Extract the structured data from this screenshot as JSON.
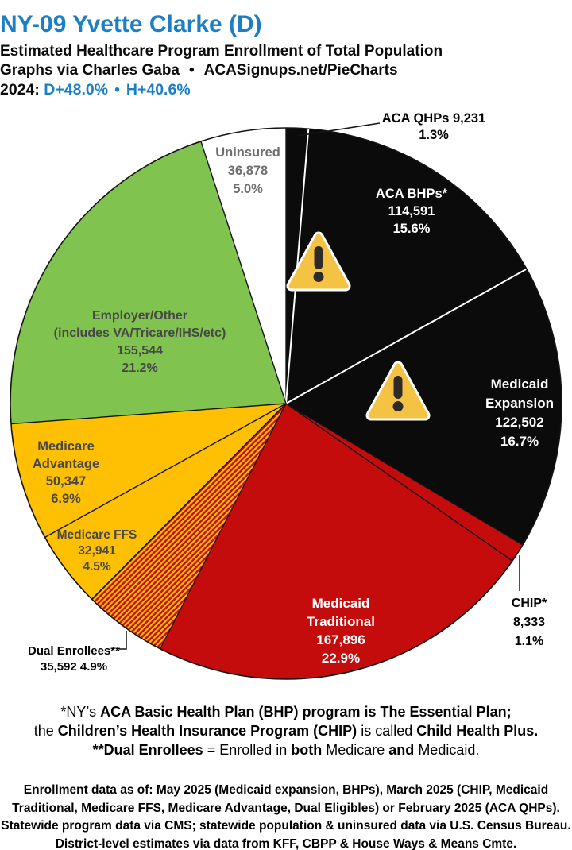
{
  "header": {
    "title": "NY-09 Yvette Clarke (D)",
    "subtitle": "Estimated Healthcare Program Enrollment of Total Population",
    "credit_left": "Graphs via Charles Gaba",
    "credit_sep": "•",
    "credit_right": "ACASignups.net/PieCharts",
    "year_label": "2024:",
    "lean_d": "D+48.0%",
    "lean_sep": "•",
    "lean_h": "H+40.6%"
  },
  "colors": {
    "title_blue": "#1C7FC6",
    "black_slice": "#0B0B0B",
    "red_slice": "#C40C0C",
    "gold_slice": "#FFC003",
    "green_slice": "#80C34F",
    "white_slice": "#FFFFFF",
    "dark_label": "#474747",
    "uninsured_label": "#6E6E6E",
    "warning_fill": "#F5C344",
    "warning_glyph": "#2D2A27"
  },
  "chart_data": {
    "type": "pie",
    "title": "Estimated Healthcare Program Enrollment of Total Population",
    "direction": "clockwise",
    "start_angle_deg": 0,
    "legend": "none",
    "slices": [
      {
        "id": "aca_qhps",
        "label": "ACA QHPs",
        "value": 9231,
        "value_text": "9,231",
        "pct": 1.3,
        "pct_text": "1.3%",
        "color": "#0B0B0B",
        "text_color": "#000000",
        "label_placement": "outside",
        "label_lines": [
          "ACA QHPs 9,231",
          "1.3%"
        ]
      },
      {
        "id": "aca_bhps",
        "label": "ACA BHPs*",
        "value": 114591,
        "value_text": "114,591",
        "pct": 15.6,
        "pct_text": "15.6%",
        "color": "#0B0B0B",
        "text_color": "#FFFFFF",
        "label_placement": "inside",
        "label_lines": [
          "ACA BHPs*",
          "114,591",
          "15.6%"
        ]
      },
      {
        "id": "medicaid_expansion",
        "label": "Medicaid Expansion",
        "value": 122502,
        "value_text": "122,502",
        "pct": 16.7,
        "pct_text": "16.7%",
        "color": "#0B0B0B",
        "text_color": "#FFFFFF",
        "label_placement": "inside",
        "label_lines": [
          "Medicaid",
          "Expansion",
          "122,502",
          "16.7%"
        ]
      },
      {
        "id": "chip",
        "label": "CHIP*",
        "value": 8333,
        "value_text": "8,333",
        "pct": 1.1,
        "pct_text": "1.1%",
        "color": "#C40C0C",
        "text_color": "#000000",
        "label_placement": "outside",
        "label_lines": [
          "CHIP*",
          "8,333",
          "1.1%"
        ]
      },
      {
        "id": "medicaid_traditional",
        "label": "Medicaid Traditional",
        "value": 167896,
        "value_text": "167,896",
        "pct": 22.9,
        "pct_text": "22.9%",
        "color": "#C40C0C",
        "text_color": "#FFFFFF",
        "label_placement": "inside",
        "label_lines": [
          "Medicaid",
          "Traditional",
          "167,896",
          "22.9%"
        ]
      },
      {
        "id": "dual_enrollees",
        "label": "Dual Enrollees**",
        "value": 35592,
        "value_text": "35,592",
        "pct": 4.9,
        "pct_text": "4.9%",
        "color": "striped",
        "stripe_colors": [
          "#C40C0C",
          "#FFC003"
        ],
        "text_color": "#000000",
        "label_placement": "outside",
        "label_lines": [
          "Dual Enrollees**",
          "35,592 4.9%"
        ]
      },
      {
        "id": "medicare_ffs",
        "label": "Medicare FFS",
        "value": 32941,
        "value_text": "32,941",
        "pct": 4.5,
        "pct_text": "4.5%",
        "color": "#FFC003",
        "text_color": "#474747",
        "label_placement": "inside",
        "label_lines": [
          "Medicare FFS",
          "32,941",
          "4.5%"
        ]
      },
      {
        "id": "medicare_advantage",
        "label": "Medicare Advantage",
        "value": 50347,
        "value_text": "50,347",
        "pct": 6.9,
        "pct_text": "6.9%",
        "color": "#FFC003",
        "text_color": "#474747",
        "label_placement": "inside",
        "label_lines": [
          "Medicare",
          "Advantage",
          "50,347",
          "6.9%"
        ]
      },
      {
        "id": "employer_other",
        "label": "Employer/Other (includes VA/Tricare/IHS/etc)",
        "value": 155544,
        "value_text": "155,544",
        "pct": 21.2,
        "pct_text": "21.2%",
        "color": "#80C34F",
        "text_color": "#474747",
        "label_placement": "inside",
        "label_lines": [
          "Employer/Other",
          "(includes VA/Tricare/IHS/etc)",
          "155,544",
          "21.2%"
        ]
      },
      {
        "id": "uninsured",
        "label": "Uninsured",
        "value": 36878,
        "value_text": "36,878",
        "pct": 5.0,
        "pct_text": "5.0%",
        "color": "#FFFFFF",
        "text_color": "#6E6E6E",
        "label_placement": "inside",
        "label_lines": [
          "Uninsured",
          "36,878",
          "5.0%"
        ]
      }
    ],
    "annotations": [
      {
        "icon": "warning-icon",
        "slice": "aca_bhps"
      },
      {
        "icon": "warning-icon",
        "slice": "medicaid_expansion"
      }
    ]
  },
  "footnotes": {
    "lines": [
      [
        {
          "t": "*NY’s ",
          "b": false
        },
        {
          "t": "ACA Basic Health Plan (BHP) program is The Essential Plan;",
          "b": true
        }
      ],
      [
        {
          "t": "the ",
          "b": false
        },
        {
          "t": "Children’s Health Insurance Program (CHIP)",
          "b": true
        },
        {
          "t": " is called ",
          "b": false
        },
        {
          "t": "Child Health Plus.",
          "b": true
        }
      ],
      [
        {
          "t": "**Dual Enrollees",
          "b": true
        },
        {
          "t": " = Enrolled in ",
          "b": false
        },
        {
          "t": "both",
          "b": true
        },
        {
          "t": " Medicare ",
          "b": false
        },
        {
          "t": "and",
          "b": true
        },
        {
          "t": " Medicaid.",
          "b": false
        }
      ]
    ]
  },
  "source": {
    "lines": [
      "Enrollment data as of: May 2025 (Medicaid expansion, BHPs), March 2025 (CHIP, Medicaid",
      "Traditional, Medicare FFS, Medicare Advantage, Dual Eligibles) or February 2025 (ACA QHPs).",
      "Statewide program data via CMS; statewide population & uninsured data via U.S. Census Bureau.",
      "District-level estimates via data from KFF, CBPP & House Ways & Means Cmte."
    ]
  }
}
